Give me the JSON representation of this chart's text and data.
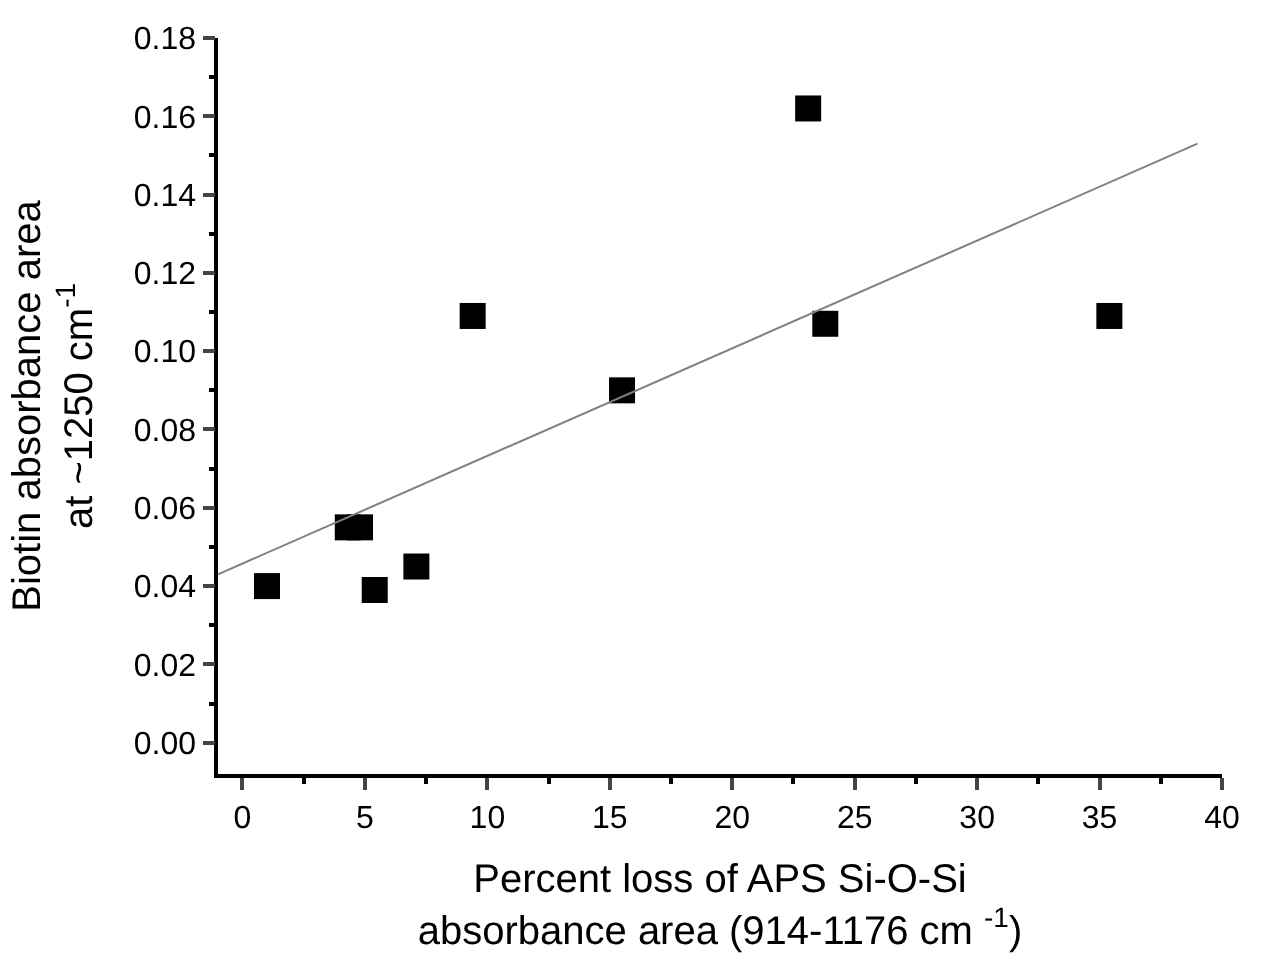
{
  "chart_data": {
    "type": "scatter",
    "xlabel": "Percent loss of APS Si-O-Si\nabsorbance area (914-1176 cm $^{-1}$)",
    "ylabel": "Biotin absorbance area\nat ~1250 cm$^{-1}$",
    "series": [
      {
        "color": "#000000",
        "marker": "square",
        "x": [
          1,
          4.3,
          4.8,
          5.4,
          7.1,
          9.4,
          15.5,
          23.1,
          23.8,
          35.4
        ],
        "values": [
          0.04,
          0.055,
          0.055,
          0.039,
          0.045,
          0.109,
          0.09,
          0.162,
          0.107,
          0.109
        ]
      },
      {
        "type": "line",
        "color": "#808080",
        "x": [
          -1,
          39
        ],
        "values": [
          0.043,
          0.153
        ]
      }
    ],
    "xlim": [
      -1,
      40
    ],
    "ylim": [
      -0.008,
      0.18
    ],
    "xticks": [
      0,
      {
        "value": 2.5,
        "label": null
      },
      5,
      {
        "value": 7.5,
        "label": null
      },
      10,
      {
        "value": 12.5,
        "label": null
      },
      15,
      {
        "value": 17.5,
        "label": null
      },
      20,
      {
        "value": 22.5,
        "label": null
      },
      25,
      {
        "value": 27.5,
        "label": null
      },
      30,
      {
        "value": 32.5,
        "label": null
      },
      35,
      {
        "value": 37.5,
        "label": null
      },
      40
    ],
    "yticks": [
      {
        "value": 0,
        "label": "0.00"
      },
      {
        "value": 0.01,
        "label": null
      },
      {
        "value": 0.02,
        "label": "0.02"
      },
      {
        "value": 0.03,
        "label": null
      },
      {
        "value": 0.04,
        "label": "0.04"
      },
      {
        "value": 0.05,
        "label": null
      },
      {
        "value": 0.06,
        "label": "0.06"
      },
      {
        "value": 0.07,
        "label": null
      },
      {
        "value": 0.08,
        "label": "0.08"
      },
      {
        "value": 0.09,
        "label": null
      },
      {
        "value": 0.1,
        "label": "0.10"
      },
      {
        "value": 0.11,
        "label": null
      },
      {
        "value": 0.12,
        "label": "0.12"
      },
      {
        "value": 0.13,
        "label": null
      },
      {
        "value": 0.14,
        "label": "0.14"
      },
      {
        "value": 0.15,
        "label": null
      },
      {
        "value": 0.16,
        "label": "0.16"
      },
      {
        "value": 0.17,
        "label": null
      },
      {
        "value": 0.18,
        "label": "0.18"
      }
    ]
  }
}
